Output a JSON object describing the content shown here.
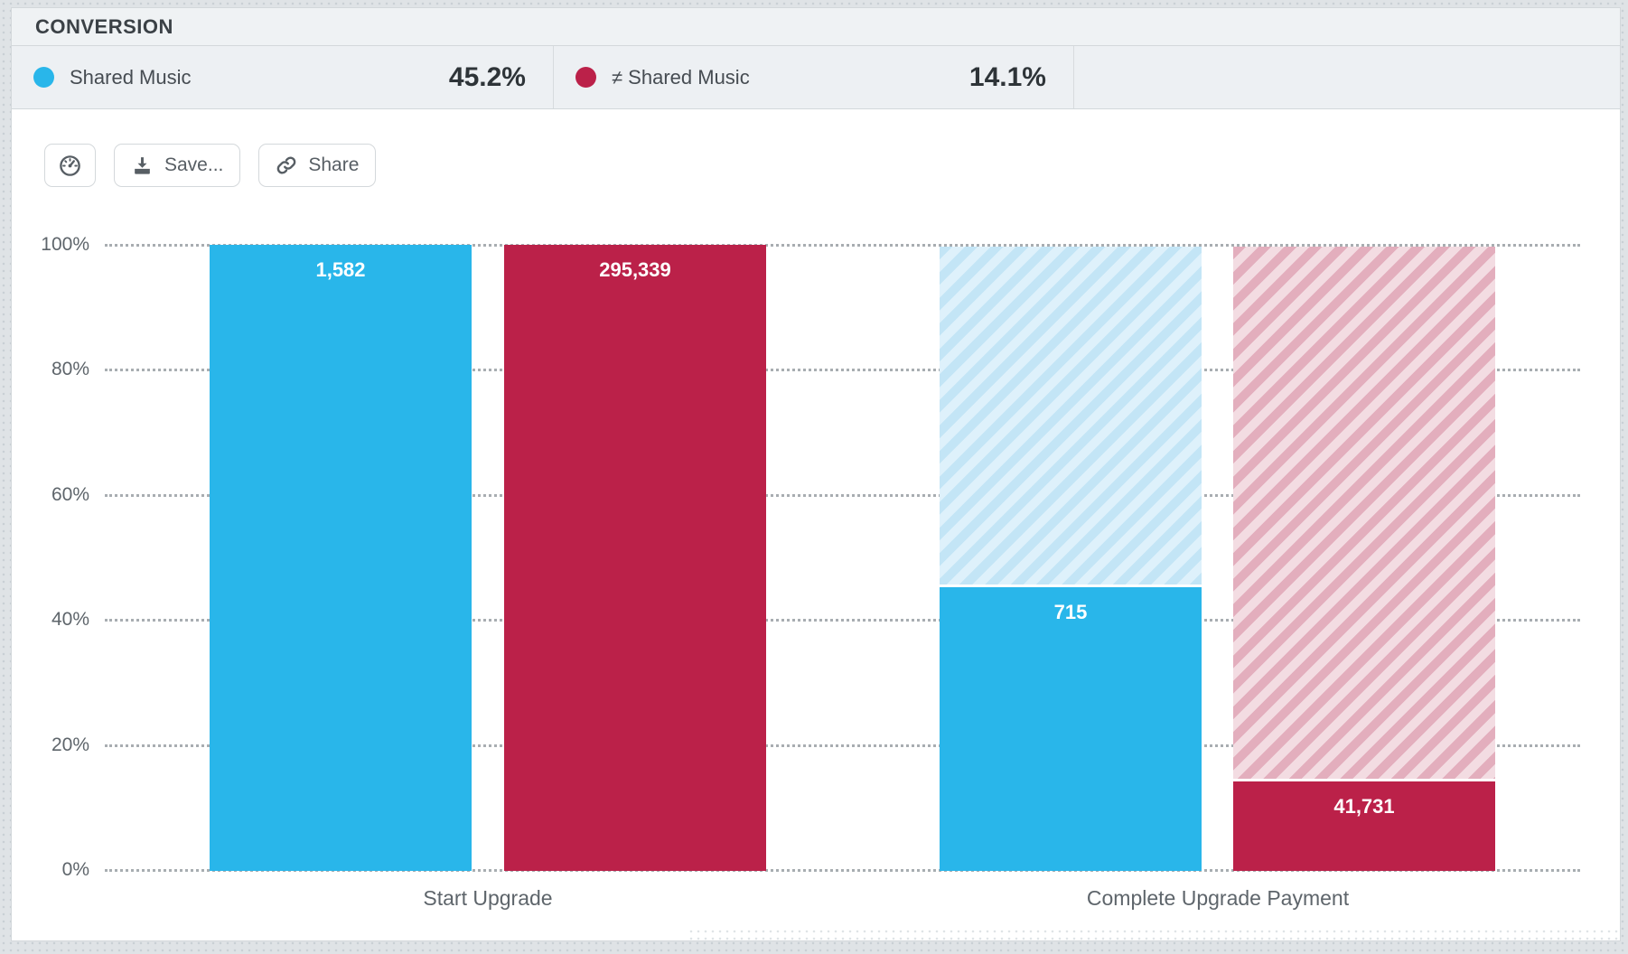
{
  "header": {
    "title": "CONVERSION"
  },
  "legend": {
    "items": [
      {
        "name": "Shared Music",
        "value": "45.2%",
        "color": "#29b6ea"
      },
      {
        "name": "≠ Shared Music",
        "value": "14.1%",
        "color": "#bb2149"
      }
    ]
  },
  "toolbar": {
    "dashboard_icon": "gauge-icon",
    "save_label": "Save...",
    "share_label": "Share"
  },
  "chart_data": {
    "type": "bar",
    "subtype": "funnel-conversion-steps",
    "title": "CONVERSION",
    "categories": [
      "Start Upgrade",
      "Complete Upgrade Payment"
    ],
    "series": [
      {
        "name": "Shared Music",
        "color": "#29b6ea",
        "hatch_dark": "#c3e5f6",
        "hatch_light": "#def1fb",
        "values": [
          1582,
          715
        ],
        "value_labels": [
          "1,582",
          "715"
        ],
        "percents": [
          100,
          45.2
        ],
        "overall_conversion": "45.2%"
      },
      {
        "name": "≠ Shared Music",
        "color": "#bb2149",
        "hatch_dark": "#e3aebd",
        "hatch_light": "#f3dce2",
        "values": [
          295339,
          41731
        ],
        "value_labels": [
          "295,339",
          "41,731"
        ],
        "percents": [
          100,
          14.1
        ],
        "overall_conversion": "14.1%"
      }
    ],
    "yticks": [
      "100%",
      "80%",
      "60%",
      "40%",
      "20%",
      "0%"
    ],
    "ylim": [
      0,
      100
    ],
    "grid": "horizontal-dotted",
    "legend_position": "top"
  }
}
